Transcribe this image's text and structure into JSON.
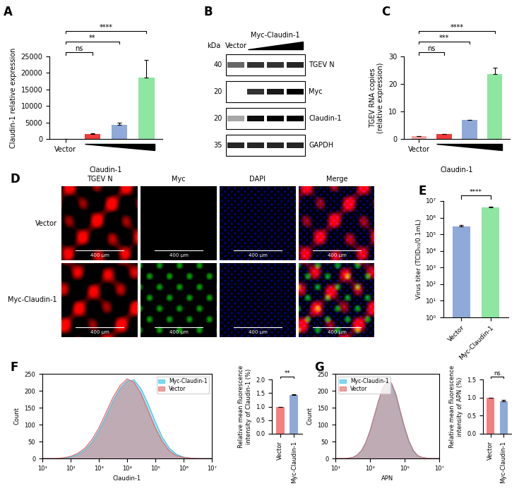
{
  "chart_data": [
    {
      "panel": "A",
      "type": "bar",
      "categories": [
        "Vector",
        null,
        null,
        null
      ],
      "values": [
        1,
        1500,
        4300,
        18500
      ],
      "errors": [
        0,
        250,
        700,
        5500
      ],
      "colors": [
        "#f5a3a3",
        "#ef3b3b",
        "#8fa9d9",
        "#8ee6a0"
      ],
      "xlabel": "Claudin-1",
      "ylabel": "Claudin-1 relative expression",
      "ylim": [
        0,
        25000
      ],
      "yticks": [
        0,
        5000,
        10000,
        15000,
        20000,
        25000
      ],
      "significance": [
        {
          "from": 0,
          "to": 1,
          "label": "ns"
        },
        {
          "from": 0,
          "to": 2,
          "label": "**"
        },
        {
          "from": 0,
          "to": 3,
          "label": "****"
        }
      ]
    },
    {
      "panel": "C",
      "type": "bar",
      "categories": [
        "Vector",
        null,
        null,
        null
      ],
      "values": [
        1,
        1.8,
        6.8,
        23.5
      ],
      "errors": [
        0.1,
        0.1,
        0.2,
        2.3
      ],
      "colors": [
        "#f5a3a3",
        "#ef3b3b",
        "#8fa9d9",
        "#8ee6a0"
      ],
      "xlabel": "Claudin-1",
      "ylabel": "TGEV RNA copies\n(relative expression)",
      "ylim": [
        0,
        30
      ],
      "yticks": [
        0,
        10,
        20,
        30
      ],
      "significance": [
        {
          "from": 0,
          "to": 1,
          "label": "ns"
        },
        {
          "from": 0,
          "to": 2,
          "label": "***"
        },
        {
          "from": 0,
          "to": 3,
          "label": "****"
        }
      ]
    },
    {
      "panel": "E",
      "type": "bar",
      "categories": [
        "Vector",
        "Myc-Claudin-1"
      ],
      "values": [
        300000,
        4200000
      ],
      "errors": [
        60000,
        300000
      ],
      "colors": [
        "#8fa9d9",
        "#8ee6a0"
      ],
      "ylabel": "Virus titer (TCID₅₀/0.1mL)",
      "log": "y",
      "ylim": [
        1,
        10000000
      ],
      "yticks": [
        {
          "value": 1,
          "label": "10⁰"
        },
        {
          "value": 10,
          "label": "10¹"
        },
        {
          "value": 100,
          "label": "10²"
        },
        {
          "value": 1000,
          "label": "10³"
        },
        {
          "value": 10000,
          "label": "10⁴"
        },
        {
          "value": 100000,
          "label": "10⁵"
        },
        {
          "value": 1000000,
          "label": "10⁶"
        },
        {
          "value": 10000000,
          "label": "10⁷"
        }
      ],
      "significance": [
        {
          "from": 0,
          "to": 1,
          "label": "****"
        }
      ]
    },
    {
      "panel": "F",
      "type": "area",
      "x": [
        10,
        17.8,
        31.6,
        56.2,
        100,
        178,
        316,
        562,
        1000,
        1780,
        3160,
        5620,
        10000,
        17800,
        31600,
        56200,
        100000,
        178000,
        316000,
        562000,
        1000000,
        1780000,
        3160000,
        5620000,
        10000000
      ],
      "series": [
        {
          "name": "Myc-Claudin-1",
          "color": "#33c4e8",
          "values": [
            0,
            0,
            0,
            1,
            4,
            11,
            24,
            46,
            80,
            122,
            168,
            205,
            228,
            232,
            205,
            160,
            108,
            62,
            30,
            12,
            4,
            1,
            0,
            0,
            0
          ]
        },
        {
          "name": "Vector",
          "color": "#e06666",
          "values": [
            0,
            0,
            0,
            2,
            6,
            15,
            30,
            55,
            90,
            135,
            180,
            215,
            235,
            225,
            190,
            140,
            90,
            50,
            22,
            8,
            3,
            1,
            0,
            0,
            0
          ]
        }
      ],
      "xlabel": "Claudin-1",
      "ylabel": "Count",
      "log": "x",
      "xlim": [
        10,
        10000000
      ],
      "xticks": [
        {
          "value": 10,
          "label": "10¹"
        },
        {
          "value": 100,
          "label": "10²"
        },
        {
          "value": 1000,
          "label": "10³"
        },
        {
          "value": 10000,
          "label": "10⁴"
        },
        {
          "value": 100000,
          "label": "10⁵"
        },
        {
          "value": 1000000,
          "label": "10⁶"
        },
        {
          "value": 10000000,
          "label": "10⁷"
        }
      ],
      "ylim": [
        0,
        250
      ],
      "yticks": [
        0,
        50,
        100,
        150,
        200,
        250
      ],
      "legend": "upper right"
    },
    {
      "type": "bar",
      "categories": [
        "Vector",
        "Myc-Claudin-1"
      ],
      "values": [
        1.0,
        1.43
      ],
      "errors": [
        0,
        0.03
      ],
      "colors": [
        "#f47f7f",
        "#8fa9d9"
      ],
      "ylabel": "Relative mean fluorescence\nintensity of Claudin-1 (%)",
      "ylim": [
        0,
        2
      ],
      "yticks": [
        {
          "value": 0,
          "label": "0.0"
        },
        0.5,
        {
          "value": 1,
          "label": "1.0"
        },
        1.5,
        {
          "value": 2,
          "label": "2.0"
        }
      ],
      "significance": [
        {
          "from": 0,
          "to": 1,
          "label": "**"
        }
      ]
    },
    {
      "panel": "G",
      "type": "area",
      "x": [
        10,
        17.8,
        31.6,
        56.2,
        100,
        178,
        316,
        562,
        1000,
        1780,
        3160,
        5620,
        10000,
        17800,
        31600,
        56200,
        100000,
        178000,
        316000,
        562000,
        1000000,
        1780000,
        3160000,
        5620000,
        10000000
      ],
      "series": [
        {
          "name": "Myc-Claudin-1",
          "color": "#33c4e8",
          "values": [
            0,
            0,
            0,
            1,
            3,
            10,
            23,
            47,
            82,
            127,
            172,
            208,
            226,
            218,
            185,
            136,
            88,
            49,
            22,
            8,
            3,
            1,
            0,
            0,
            0
          ]
        },
        {
          "name": "Vector",
          "color": "#e06666",
          "values": [
            0,
            0,
            0,
            1,
            3,
            9,
            22,
            45,
            80,
            125,
            170,
            210,
            230,
            222,
            190,
            140,
            92,
            52,
            24,
            9,
            3,
            1,
            0,
            0,
            0
          ]
        }
      ],
      "xlabel": "APN",
      "ylabel": "Count",
      "log": "x",
      "xlim": [
        10,
        10000000
      ],
      "xticks": [
        {
          "value": 10,
          "label": "10¹"
        },
        {
          "value": 1000,
          "label": "10³"
        },
        {
          "value": 100000,
          "label": "10⁵"
        },
        {
          "value": 10000000,
          "label": "10⁷"
        }
      ],
      "ylim": [
        0,
        250
      ],
      "yticks": [
        0,
        50,
        100,
        150,
        200,
        250
      ],
      "legend": "upper left"
    },
    {
      "type": "bar",
      "categories": [
        "Vector",
        "Myc-Claudin-1"
      ],
      "values": [
        1.0,
        0.9
      ],
      "errors": [
        0,
        0.03
      ],
      "colors": [
        "#f47f7f",
        "#8fa9d9"
      ],
      "ylabel": "Relative mean fluorescence\nintensity of APN (%)",
      "ylim": [
        0,
        1.5
      ],
      "yticks": [
        {
          "value": 0,
          "label": "0.0"
        },
        0.5,
        {
          "value": 1,
          "label": "1.0"
        },
        1.5
      ],
      "significance": [
        {
          "from": 0,
          "to": 1,
          "label": "ns"
        }
      ]
    }
  ],
  "blot": {
    "panel": "B",
    "unit": "kDa",
    "lanes": [
      "Vector",
      null,
      null,
      null
    ],
    "gradient_label": "Myc-Claudin-1",
    "rows": [
      {
        "name": "TGEV N",
        "marker": 40,
        "intensities": [
          0.6,
          0.8,
          0.8,
          0.85
        ]
      },
      {
        "name": "Myc",
        "marker": 20,
        "intensities": [
          0,
          0.8,
          0.9,
          1.0
        ]
      },
      {
        "name": "Claudin-1",
        "marker": 20,
        "intensities": [
          0.35,
          0.95,
          1.0,
          1.0
        ]
      },
      {
        "name": "GAPDH",
        "marker": 35,
        "intensities": [
          0.85,
          0.85,
          0.85,
          0.85
        ]
      }
    ]
  },
  "microscopy": {
    "panel": "D",
    "columns": [
      "TGEV N",
      "Myc",
      "DAPI",
      "Merge"
    ],
    "rows": [
      "Vector",
      "Myc-Claudin-1"
    ],
    "scale_bar": "400 μm"
  }
}
